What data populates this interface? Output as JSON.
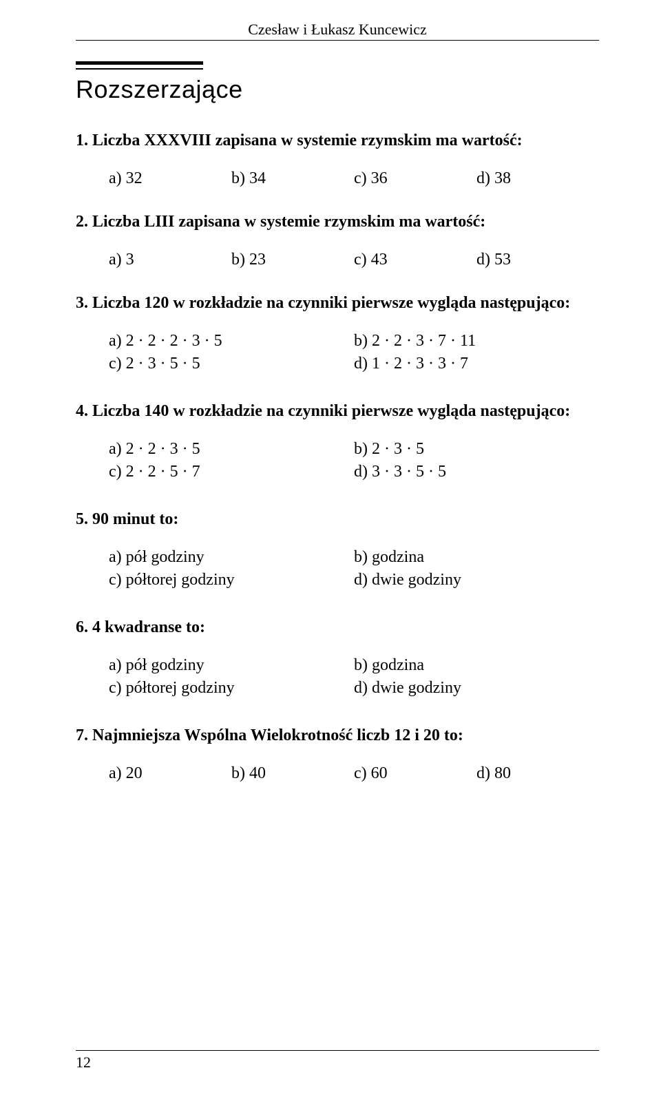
{
  "header": {
    "author": "Czesław i Łukasz Kuncewicz"
  },
  "section": {
    "title": "Rozszerzające"
  },
  "questions": {
    "q1": {
      "text": "1. Liczba XXXVIII zapisana w systemie rzymskim ma wartość:",
      "a": "a) 32",
      "b": "b) 34",
      "c": "c) 36",
      "d": "d) 38"
    },
    "q2": {
      "text": "2. Liczba LIII zapisana w systemie rzymskim ma wartość:",
      "a": "a) 3",
      "b": "b) 23",
      "c": "c) 43",
      "d": "d) 53"
    },
    "q3": {
      "text": "3. Liczba 120 w rozkładzie na czynniki pierwsze wygląda następująco:",
      "a": "a) 2 · 2 · 2 · 3 · 5",
      "b": "b) 2 · 2 · 3 · 7 · 11",
      "c": "c) 2 · 3 · 5 · 5",
      "d": "d) 1 · 2 · 3 · 3 · 7"
    },
    "q4": {
      "text": "4. Liczba 140 w rozkładzie na czynniki pierwsze wygląda następująco:",
      "a": "a) 2 · 2 · 3 · 5",
      "b": "b) 2 · 3 · 5",
      "c": "c) 2 · 2 · 5 · 7",
      "d": "d) 3 · 3 · 5 · 5"
    },
    "q5": {
      "text": "5. 90 minut to:",
      "a": "a) pół godziny",
      "b": "b) godzina",
      "c": "c) półtorej godziny",
      "d": "d) dwie godziny"
    },
    "q6": {
      "text": "6. 4 kwadranse to:",
      "a": "a) pół godziny",
      "b": "b) godzina",
      "c": "c) półtorej godziny",
      "d": "d) dwie godziny"
    },
    "q7": {
      "text": "7. Najmniejsza Wspólna Wielokrotność liczb 12 i 20 to:",
      "a": "a) 20",
      "b": "b) 40",
      "c": "c) 60",
      "d": "d) 80"
    }
  },
  "footer": {
    "page": "12"
  }
}
